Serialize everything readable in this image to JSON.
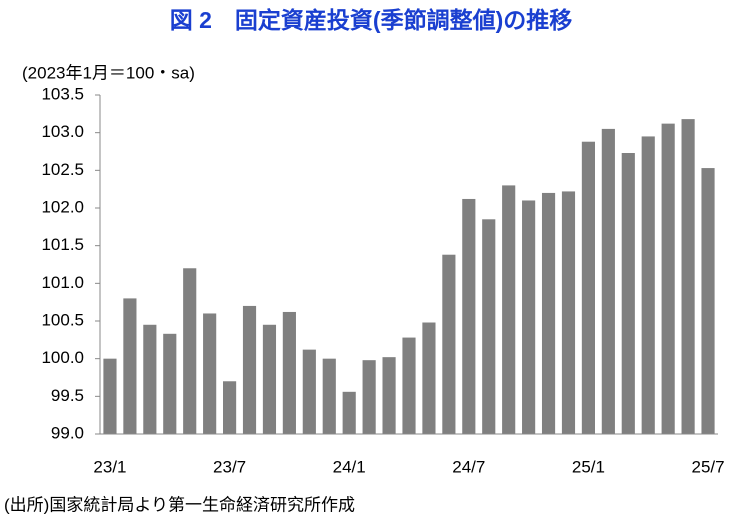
{
  "chart_data": {
    "type": "bar",
    "title": "図 2　固定資産投資(季節調整値)の推移",
    "y_label": "(2023年1月＝100・sa)",
    "source": "(出所)国家統計局より第一生命経済研究所作成",
    "categories": [
      "23/1",
      null,
      null,
      null,
      null,
      null,
      "23/7",
      null,
      null,
      null,
      null,
      null,
      "24/1",
      null,
      null,
      null,
      null,
      null,
      "24/7",
      null,
      null,
      null,
      null,
      null,
      "25/1",
      null,
      null,
      null,
      null,
      null,
      "25/7"
    ],
    "values": [
      100.0,
      100.8,
      100.45,
      100.33,
      101.2,
      100.6,
      99.7,
      100.7,
      100.45,
      100.62,
      100.12,
      100.0,
      99.56,
      99.98,
      100.02,
      100.28,
      100.48,
      101.38,
      102.12,
      101.85,
      102.3,
      102.1,
      102.2,
      102.22,
      102.88,
      103.05,
      102.73,
      102.95,
      103.12,
      103.18,
      102.53
    ],
    "color": "#808080",
    "ylim": [
      99.0,
      103.5
    ],
    "yticks": [
      {
        "value": 99,
        "label": "99.0"
      },
      99.5,
      {
        "value": 100,
        "label": "100.0"
      },
      100.5,
      {
        "value": 101,
        "label": "101.0"
      },
      101.5,
      {
        "value": 102,
        "label": "102.0"
      },
      102.5,
      {
        "value": 103,
        "label": "103.0"
      },
      103.5
    ],
    "grid": false
  }
}
